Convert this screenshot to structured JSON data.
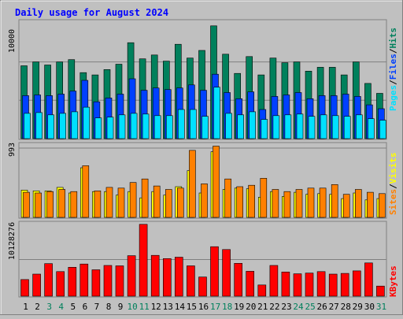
{
  "chart_data": [
    {
      "type": "bar",
      "panel": "hits-files-pages",
      "title": "Daily usage for August 2024",
      "ylabel": "10000",
      "series_labels": [
        "Pages",
        "/",
        "Files",
        "/",
        "Hits"
      ],
      "categories": [
        "1",
        "2",
        "3",
        "4",
        "5",
        "6",
        "7",
        "8",
        "9",
        "10",
        "11",
        "12",
        "13",
        "14",
        "15",
        "16",
        "17",
        "18",
        "19",
        "20",
        "21",
        "22",
        "23",
        "24",
        "25",
        "26",
        "27",
        "28",
        "29",
        "30",
        "31"
      ],
      "series": [
        {
          "name": "Hits",
          "color": "#00805c",
          "values": [
            9500,
            10000,
            9600,
            10000,
            10300,
            8600,
            8300,
            9000,
            9700,
            12500,
            10400,
            10900,
            10100,
            12300,
            10500,
            11500,
            14700,
            11000,
            8500,
            10700,
            8300,
            10500,
            9900,
            10000,
            8800,
            9300,
            9300,
            8300,
            10000,
            7200,
            5900
          ]
        },
        {
          "name": "Files",
          "color": "#0040ff",
          "values": [
            5600,
            5700,
            5600,
            5800,
            6200,
            7600,
            4800,
            5300,
            5800,
            7800,
            6300,
            6600,
            6400,
            6600,
            7000,
            6300,
            8400,
            6000,
            5200,
            6100,
            3800,
            5500,
            5700,
            6000,
            5200,
            5600,
            5600,
            5800,
            5500,
            4400,
            3900
          ]
        },
        {
          "name": "Pages",
          "color": "#00e0ff",
          "values": [
            3300,
            3400,
            3100,
            3300,
            3500,
            4100,
            2700,
            2800,
            3100,
            3300,
            3200,
            3000,
            3000,
            3800,
            3800,
            2900,
            6700,
            3300,
            3100,
            3500,
            2500,
            3000,
            3100,
            3200,
            2900,
            3100,
            3000,
            2900,
            3100,
            2600,
            2400
          ]
        }
      ]
    },
    {
      "type": "bar",
      "panel": "visits-sites",
      "ylabel": "993",
      "series_labels": [
        "Sites",
        "/",
        "Visits"
      ],
      "categories": [
        "1",
        "2",
        "3",
        "4",
        "5",
        "6",
        "7",
        "8",
        "9",
        "10",
        "11",
        "12",
        "13",
        "14",
        "15",
        "16",
        "17",
        "18",
        "19",
        "20",
        "21",
        "22",
        "23",
        "24",
        "25",
        "26",
        "27",
        "28",
        "29",
        "30",
        "31"
      ],
      "series": [
        {
          "name": "Visits",
          "color": "#ffff00",
          "values": [
            390,
            380,
            380,
            430,
            350,
            710,
            370,
            370,
            320,
            370,
            280,
            370,
            320,
            440,
            670,
            350,
            940,
            400,
            420,
            410,
            290,
            370,
            300,
            360,
            330,
            340,
            330,
            270,
            350,
            250,
            270
          ]
        },
        {
          "name": "Sites",
          "color": "#ff8000",
          "values": [
            360,
            350,
            370,
            400,
            370,
            740,
            380,
            430,
            420,
            500,
            550,
            450,
            400,
            420,
            960,
            480,
            1020,
            550,
            440,
            460,
            560,
            400,
            370,
            400,
            420,
            420,
            470,
            330,
            400,
            360,
            340
          ]
        }
      ]
    },
    {
      "type": "bar",
      "panel": "kbytes",
      "ylabel": "10128276",
      "series_labels": [
        "KBytes"
      ],
      "categories": [
        "1",
        "2",
        "3",
        "4",
        "5",
        "6",
        "7",
        "8",
        "9",
        "10",
        "11",
        "12",
        "13",
        "14",
        "15",
        "16",
        "17",
        "18",
        "19",
        "20",
        "21",
        "22",
        "23",
        "24",
        "25",
        "26",
        "27",
        "28",
        "29",
        "30",
        "31"
      ],
      "series": [
        {
          "name": "KBytes",
          "color": "#ff0000",
          "values": [
            4600000,
            6100000,
            9000000,
            6800000,
            8000000,
            8900000,
            7300000,
            8500000,
            8400000,
            11200000,
            19900000,
            11300000,
            10400000,
            10800000,
            8400000,
            5300000,
            13700000,
            12900000,
            9100000,
            6900000,
            3100000,
            8500000,
            6700000,
            6200000,
            6400000,
            6800000,
            6100000,
            6300000,
            7000000,
            9200000,
            2800000
          ]
        }
      ]
    }
  ],
  "x_axis": {
    "labels": [
      "1",
      "2",
      "3",
      "4",
      "5",
      "6",
      "7",
      "8",
      "9",
      "10",
      "11",
      "12",
      "13",
      "14",
      "15",
      "16",
      "17",
      "18",
      "19",
      "20",
      "21",
      "22",
      "23",
      "24",
      "25",
      "26",
      "27",
      "28",
      "29",
      "30",
      "31"
    ],
    "weekend_days": [
      "3",
      "4",
      "10",
      "11",
      "17",
      "18",
      "24",
      "25",
      "31"
    ],
    "weekday_color": "#000000",
    "weekend_color": "#00805c"
  },
  "colors": {
    "background": "#c0c0c0",
    "plot_background": "#c0c0c0",
    "title": "#0000ff"
  }
}
